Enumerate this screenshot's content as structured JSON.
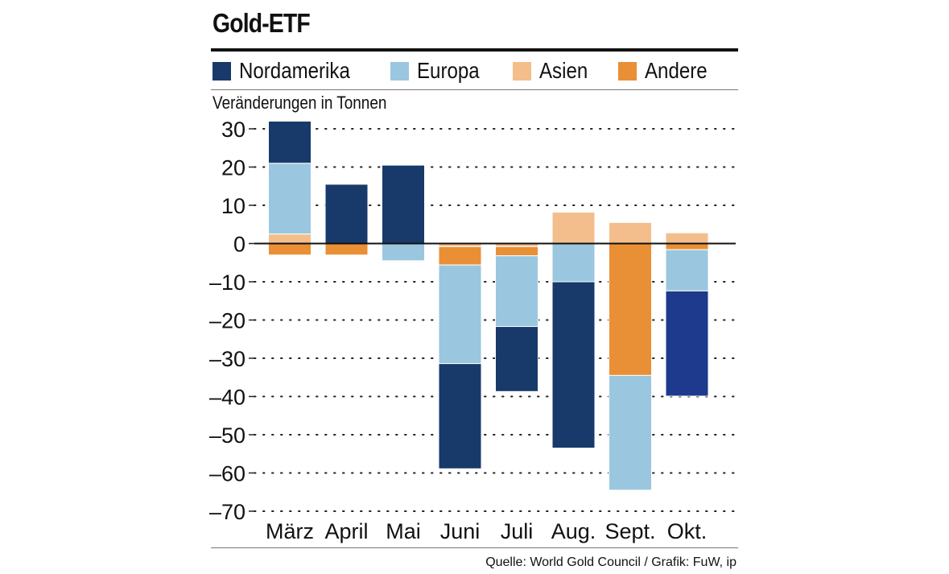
{
  "chart_data": {
    "type": "bar",
    "stacked": true,
    "title": "Gold-ETF",
    "ylabel": "Veränderungen in Tonnen",
    "xlabel": "",
    "ylim": [
      -70,
      33
    ],
    "yticks": [
      30,
      20,
      10,
      0,
      -10,
      -20,
      -30,
      -40,
      -50,
      -60,
      -70
    ],
    "ytick_labels": [
      "30",
      "20",
      "10",
      "0",
      "–10",
      "–20",
      "–30",
      "–40",
      "–50",
      "–60",
      "–70"
    ],
    "grid": "dotted horizontal",
    "categories": [
      "März",
      "April",
      "Mai",
      "Juni",
      "Juli",
      "Aug.",
      "Sept.",
      "Okt."
    ],
    "series": [
      {
        "name": "Nordamerika",
        "color": "#173a6a",
        "values": [
          11,
          15.5,
          20.5,
          -27.5,
          -17,
          -43.5,
          0,
          -27.5
        ]
      },
      {
        "name": "Europa",
        "color": "#9ac7df",
        "values": [
          18.5,
          0,
          -4.5,
          -25.8,
          -18.5,
          -10,
          -30,
          -10.8
        ]
      },
      {
        "name": "Asien",
        "color": "#f4be8c",
        "values": [
          2.5,
          0,
          0,
          -0.8,
          -0.8,
          8.2,
          5.5,
          2.8
        ]
      },
      {
        "name": "Andere",
        "color": "#e98f35",
        "values": [
          -3,
          -3,
          0,
          -4.8,
          -2.4,
          0,
          -34.5,
          -1.6
        ]
      }
    ],
    "bar_colors_override": {
      "Okt.": {
        "Nordamerika": "#1e3a8c"
      }
    },
    "legend_position": "top"
  },
  "source": "Quelle: World Gold Council / Grafik: FuW, ip"
}
